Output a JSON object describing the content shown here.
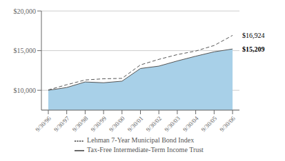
{
  "chart_data": {
    "type": "line",
    "categories": [
      "9/30/96",
      "9/30/97",
      "9/30/98",
      "9/30/99",
      "9/30/00",
      "9/30/01",
      "9/30/02",
      "9/30/03",
      "9/30/04",
      "9/30/05",
      "9/30/06"
    ],
    "series": [
      {
        "name": "Tax-Free Intermediate-Term Income Trust",
        "type": "area",
        "color": "#555555",
        "line_style": "solid",
        "values": [
          10000,
          10350,
          11050,
          10950,
          11150,
          12750,
          13050,
          13700,
          14300,
          14850,
          15209
        ]
      },
      {
        "name": "Lehman 7-Year Municipal Bond Index",
        "type": "line",
        "color": "#555555",
        "line_style": "dashed",
        "values": [
          10050,
          10700,
          11300,
          11450,
          11500,
          13200,
          13900,
          14500,
          14950,
          15650,
          16924
        ]
      }
    ],
    "color": "#a8d0e8",
    "ylim": [
      7500,
      20000
    ],
    "yticks": [
      {
        "value": 10000,
        "label": "$10,000"
      },
      {
        "value": 15000,
        "label": "$15,000"
      },
      {
        "value": 20000,
        "label": "$20,000"
      }
    ],
    "grid": true,
    "annotations": [
      {
        "text": "$16,924",
        "x": "9/30/06",
        "y": 16924
      },
      {
        "text": "$15,209",
        "x": "9/30/06",
        "y": 15209
      }
    ]
  }
}
